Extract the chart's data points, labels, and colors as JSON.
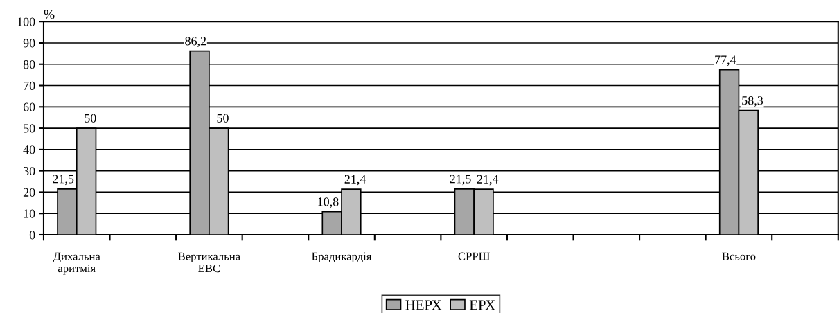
{
  "chart_data": {
    "type": "bar",
    "ylabel": "%",
    "categories": [
      "Дихальна\nаритмія",
      null,
      "Вертикальна\nЕВС",
      null,
      "Брадикардія",
      null,
      "СРРШ",
      null,
      null,
      null,
      "Всього",
      null
    ],
    "series": [
      {
        "name": "НЕРХ",
        "color": "#a6a6a6",
        "values": [
          21.5,
          null,
          86.2,
          null,
          10.8,
          null,
          21.5,
          null,
          null,
          null,
          77.4,
          null
        ],
        "value_labels": [
          "21,5",
          null,
          "86,2",
          null,
          "10,8",
          null,
          "21,5",
          null,
          null,
          null,
          "77,4",
          null
        ]
      },
      {
        "name": "ЕРХ",
        "color": "#bfbfbf",
        "values": [
          50,
          null,
          50,
          null,
          21.4,
          null,
          21.4,
          null,
          null,
          null,
          58.3,
          null
        ],
        "value_labels": [
          "50",
          null,
          "50",
          null,
          "21,4",
          null,
          "21,4",
          null,
          null,
          null,
          "58,3",
          null
        ]
      }
    ],
    "ylim": [
      0,
      100
    ],
    "yticks": [
      0,
      10,
      20,
      30,
      40,
      50,
      60,
      70,
      80,
      90,
      100
    ],
    "grid": "y",
    "legend": "bottom"
  }
}
